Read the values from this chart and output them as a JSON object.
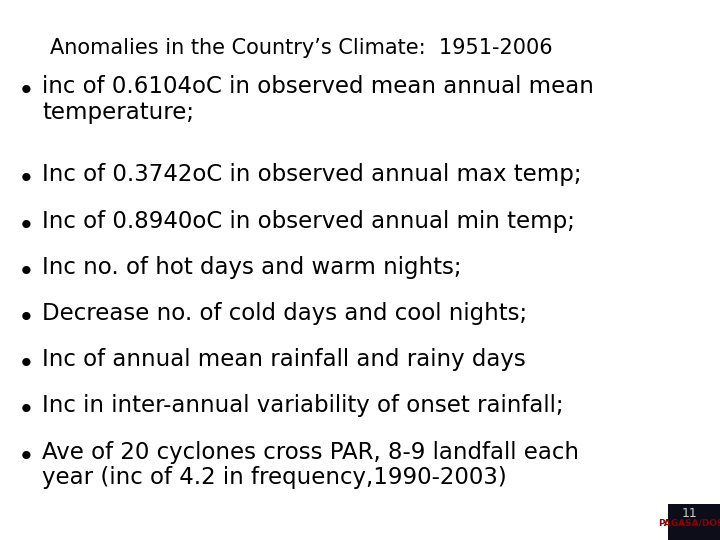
{
  "title": "Anomalies in the Country’s Climate:  1951-2006",
  "title_fontsize": 15,
  "title_color": "#000000",
  "background_color": "#ffffff",
  "bullet_items": [
    "inc of 0.6104oC in observed mean annual mean\ntemperature;",
    "Inc of 0.3742oC in observed annual max temp;",
    "Inc of 0.8940oC in observed annual min temp;",
    "Inc no. of hot days and warm nights;",
    "Decrease no. of cold days and cool nights;",
    "Inc of annual mean rainfall and rainy days",
    "Inc in inter-annual variability of onset rainfall;",
    "Ave of 20 cyclones cross PAR, 8-9 landfall each\nyear (inc of 4.2 in frequency,1990-2003)"
  ],
  "bullet_fontsize": 16.5,
  "bullet_color": "#000000",
  "footer_number": "11",
  "footer_text": "PAGASA/DOST",
  "footer_box_color": "#0d0d1a",
  "footer_text_color": "#8b0000"
}
